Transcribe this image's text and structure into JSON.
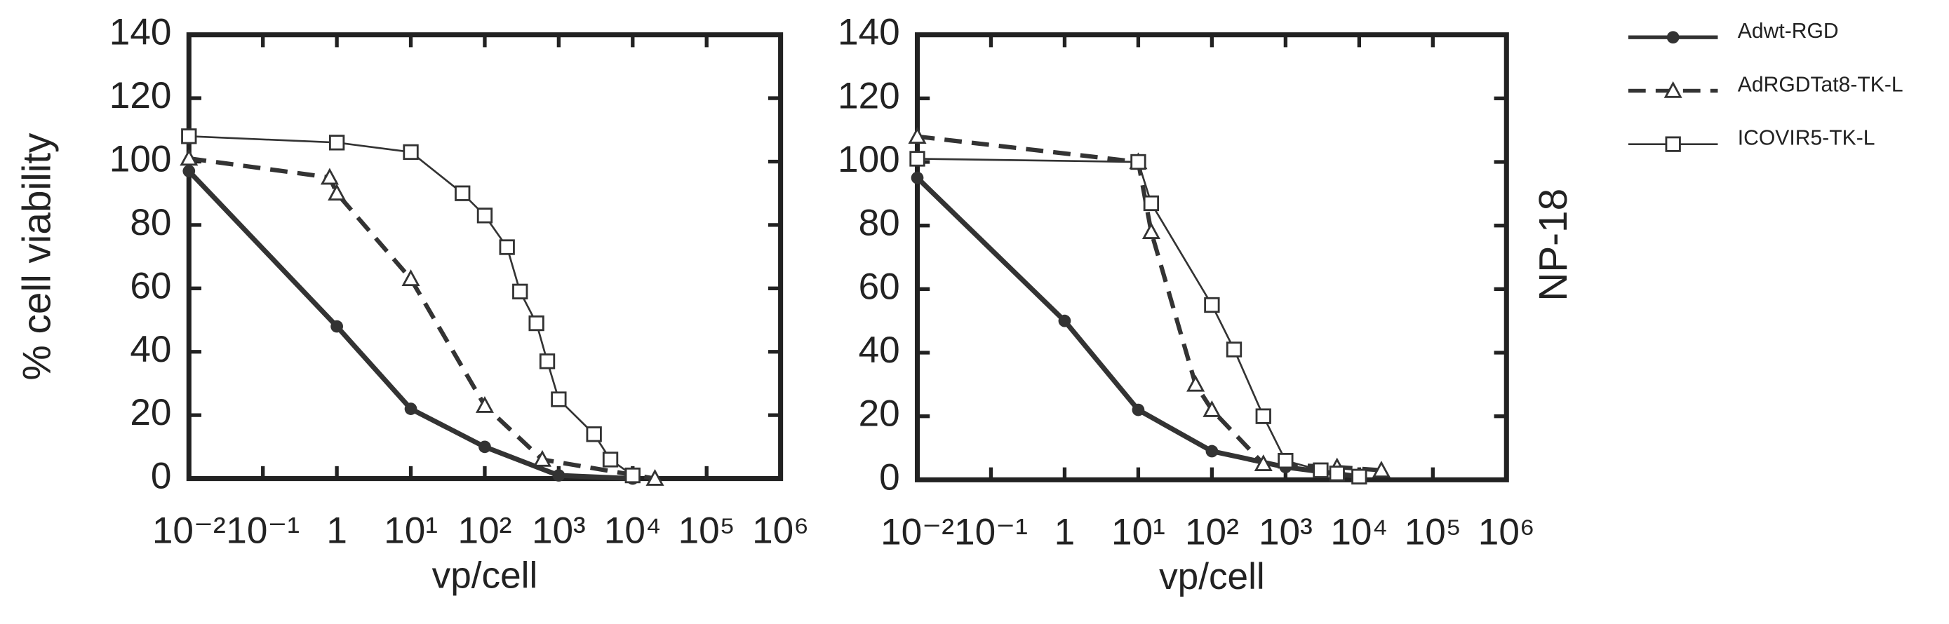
{
  "chart_data": [
    {
      "type": "line",
      "ylabel": "% cell viability",
      "xlabel": "vp/cell",
      "log_x": true,
      "xlim": [
        0.01,
        1000000
      ],
      "ylim": [
        0,
        140
      ],
      "xticks": [
        {
          "value": 0.01,
          "label": "10⁻²"
        },
        {
          "value": 0.1,
          "label": "10⁻¹"
        },
        1,
        {
          "value": 10,
          "label": "10¹"
        },
        {
          "value": 100,
          "label": "10²"
        },
        {
          "value": 1000,
          "label": "10³"
        },
        {
          "value": 10000,
          "label": "10⁴"
        },
        {
          "value": 100000,
          "label": "10⁵"
        },
        {
          "value": 1000000,
          "label": "10⁶"
        }
      ],
      "yticks": [
        0,
        20,
        40,
        60,
        80,
        100,
        120,
        140
      ],
      "series": [
        {
          "name": "Adwt-RGD",
          "color": "#333333",
          "style": "thick",
          "marker": "circle",
          "x": [
            0.01,
            1,
            10,
            100,
            1000,
            10000
          ],
          "values": [
            97,
            48,
            22,
            10,
            1,
            0
          ]
        },
        {
          "name": "AdRGDTat8-TK-L",
          "color": "#333333",
          "style": "dashed",
          "marker": "triangle",
          "x": [
            0.01,
            0.8,
            1,
            10,
            100,
            600,
            20000
          ],
          "values": [
            101,
            95,
            90,
            63,
            23,
            6,
            0
          ]
        },
        {
          "name": "ICOVIR5-TK-L",
          "color": "#333333",
          "style": "thin",
          "marker": "square",
          "x": [
            0.01,
            1,
            10,
            50,
            100,
            200,
            300,
            500,
            700,
            1000,
            3000,
            5000,
            10000
          ],
          "values": [
            108,
            106,
            103,
            90,
            83,
            73,
            59,
            49,
            37,
            25,
            14,
            6,
            1
          ]
        }
      ]
    },
    {
      "type": "line",
      "title": "NP-18",
      "xlabel": "vp/cell",
      "log_x": true,
      "xlim": [
        0.01,
        1000000
      ],
      "ylim": [
        0,
        140
      ],
      "xticks": [
        {
          "value": 0.01,
          "label": "10⁻²"
        },
        {
          "value": 0.1,
          "label": "10⁻¹"
        },
        1,
        {
          "value": 10,
          "label": "10¹"
        },
        {
          "value": 100,
          "label": "10²"
        },
        {
          "value": 1000,
          "label": "10³"
        },
        {
          "value": 10000,
          "label": "10⁴"
        },
        {
          "value": 100000,
          "label": "10⁵"
        },
        {
          "value": 1000000,
          "label": "10⁶"
        }
      ],
      "yticks": [
        0,
        20,
        40,
        60,
        80,
        100,
        120,
        140
      ],
      "series": [
        {
          "color": "#333333",
          "style": "thick",
          "marker": "circle",
          "x": [
            0.01,
            1,
            10,
            100,
            1000,
            10000
          ],
          "values": [
            95,
            50,
            22,
            9,
            4,
            1
          ]
        },
        {
          "color": "#333333",
          "style": "dashed",
          "marker": "triangle",
          "x": [
            0.01,
            10,
            15,
            60,
            100,
            500,
            5000,
            20000
          ],
          "values": [
            108,
            100,
            78,
            30,
            22,
            5,
            4,
            3
          ]
        },
        {
          "color": "#333333",
          "style": "thin",
          "marker": "square",
          "x": [
            0.01,
            10,
            15,
            100,
            200,
            500,
            1000,
            3000,
            5000,
            10000
          ],
          "values": [
            101,
            100,
            87,
            55,
            41,
            20,
            6,
            3,
            2,
            1
          ]
        }
      ]
    }
  ]
}
